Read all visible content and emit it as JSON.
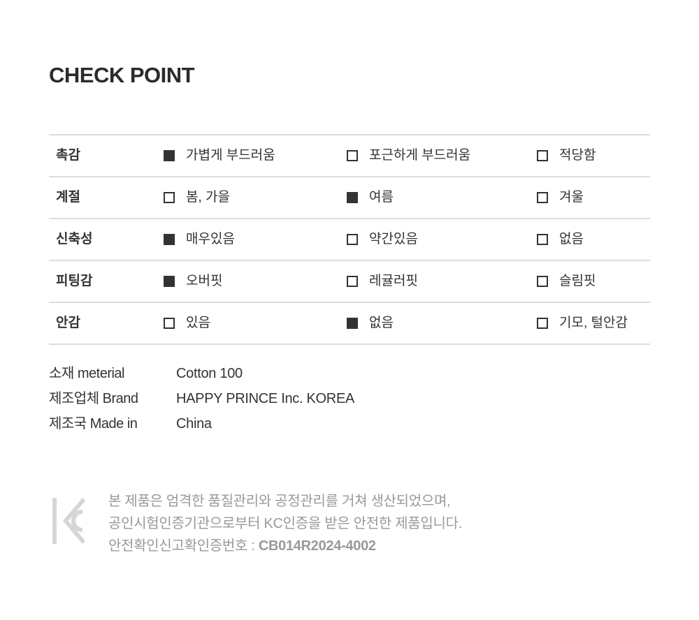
{
  "title": "CHECK POINT",
  "rows": [
    {
      "label": "촉감",
      "options": [
        {
          "text": "가볍게 부드러움",
          "checked": true
        },
        {
          "text": "포근하게 부드러움",
          "checked": false
        },
        {
          "text": "적당함",
          "checked": false
        }
      ]
    },
    {
      "label": "계절",
      "options": [
        {
          "text": "봄, 가을",
          "checked": false
        },
        {
          "text": "여름",
          "checked": true
        },
        {
          "text": "겨울",
          "checked": false
        }
      ]
    },
    {
      "label": "신축성",
      "options": [
        {
          "text": "매우있음",
          "checked": true
        },
        {
          "text": "약간있음",
          "checked": false
        },
        {
          "text": "없음",
          "checked": false
        }
      ]
    },
    {
      "label": "피팅감",
      "options": [
        {
          "text": "오버핏",
          "checked": true
        },
        {
          "text": "레귤러핏",
          "checked": false
        },
        {
          "text": "슬림핏",
          "checked": false
        }
      ]
    },
    {
      "label": "안감",
      "options": [
        {
          "text": "있음",
          "checked": false
        },
        {
          "text": "없음",
          "checked": true
        },
        {
          "text": "기모, 털안감",
          "checked": false
        }
      ]
    }
  ],
  "info": [
    {
      "label": "소재 meterial",
      "value": "Cotton 100"
    },
    {
      "label": "제조업체 Brand",
      "value": "HAPPY PRINCE Inc. KOREA"
    },
    {
      "label": "제조국 Made in",
      "value": "China"
    }
  ],
  "notice": {
    "logo": "KC",
    "line1": "본 제품은 엄격한 품질관리와 공정관리를 거쳐 생산되었으며,",
    "line2": "공인시험인증기관으로부터 KC인증을 받은 안전한 제품입니다.",
    "cert_label": "안전확인신고확인증번호 : ",
    "cert_number": "CB014R2024-4002"
  },
  "colors": {
    "text": "#333333",
    "border": "#dddddd",
    "notice": "#999999"
  }
}
